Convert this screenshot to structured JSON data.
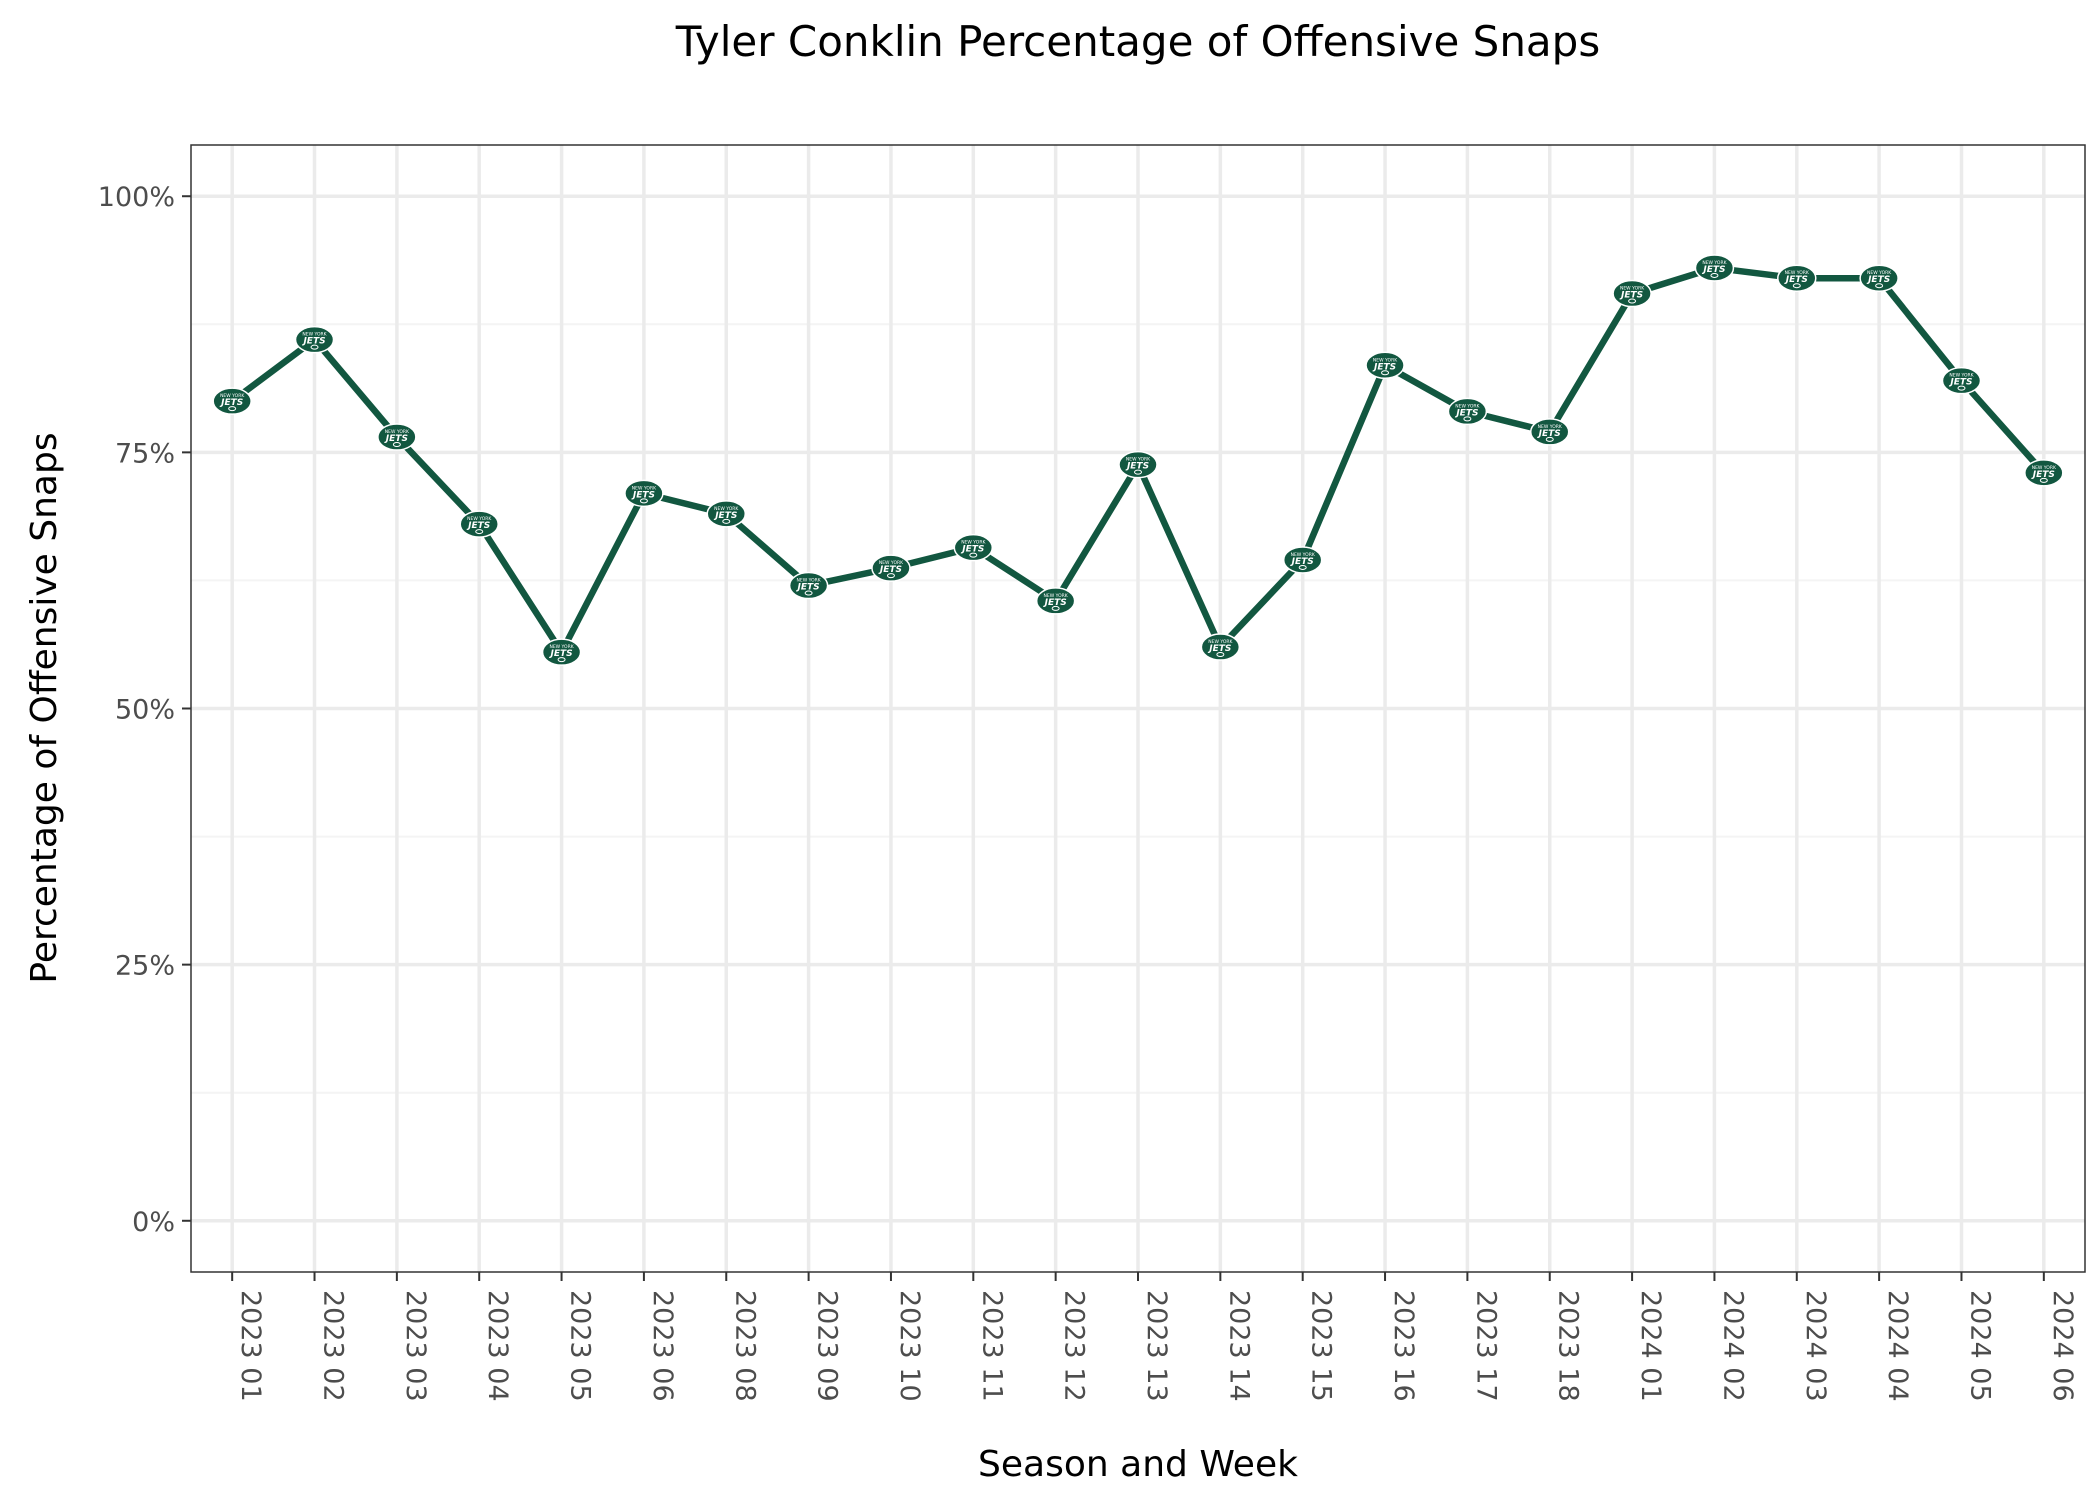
{
  "colors": {
    "line": "#125740",
    "marker": "#125740",
    "marker_text": "#ffffff",
    "grid_major": "#ebebeb",
    "grid_minor": "#f4f4f4",
    "panel_border": "#333333",
    "tick": "#333333"
  },
  "marker_logo": {
    "top_text": "NEW YORK",
    "main_text": "JETS"
  },
  "chart_data": {
    "type": "line",
    "title": "Tyler Conklin Percentage of Offensive Snaps",
    "xlabel": "Season and Week",
    "ylabel": "Percentage of Offensive Snaps",
    "ylim": [
      -0.05,
      1.05
    ],
    "y_ticks": [
      0,
      0.25,
      0.5,
      0.75,
      1.0
    ],
    "y_tick_labels": [
      "0%",
      "25%",
      "50%",
      "75%",
      "100%"
    ],
    "y_minor_ticks": [
      0.125,
      0.375,
      0.625,
      0.875
    ],
    "categories": [
      "2023 01",
      "2023 02",
      "2023 03",
      "2023 04",
      "2023 05",
      "2023 06",
      "2023 08",
      "2023 09",
      "2023 10",
      "2023 11",
      "2023 12",
      "2023 13",
      "2023 14",
      "2023 15",
      "2023 16",
      "2023 17",
      "2023 18",
      "2024 01",
      "2024 02",
      "2024 03",
      "2024 04",
      "2024 05",
      "2024 06"
    ],
    "series": [
      {
        "name": "Tyler Conklin",
        "values": [
          0.8,
          0.86,
          0.765,
          0.68,
          0.555,
          0.71,
          0.69,
          0.62,
          0.637,
          0.657,
          0.605,
          0.738,
          0.56,
          0.645,
          0.835,
          0.79,
          0.77,
          0.905,
          0.93,
          0.92,
          0.92,
          0.82,
          0.73
        ]
      }
    ],
    "grid": true,
    "legend": "none"
  }
}
